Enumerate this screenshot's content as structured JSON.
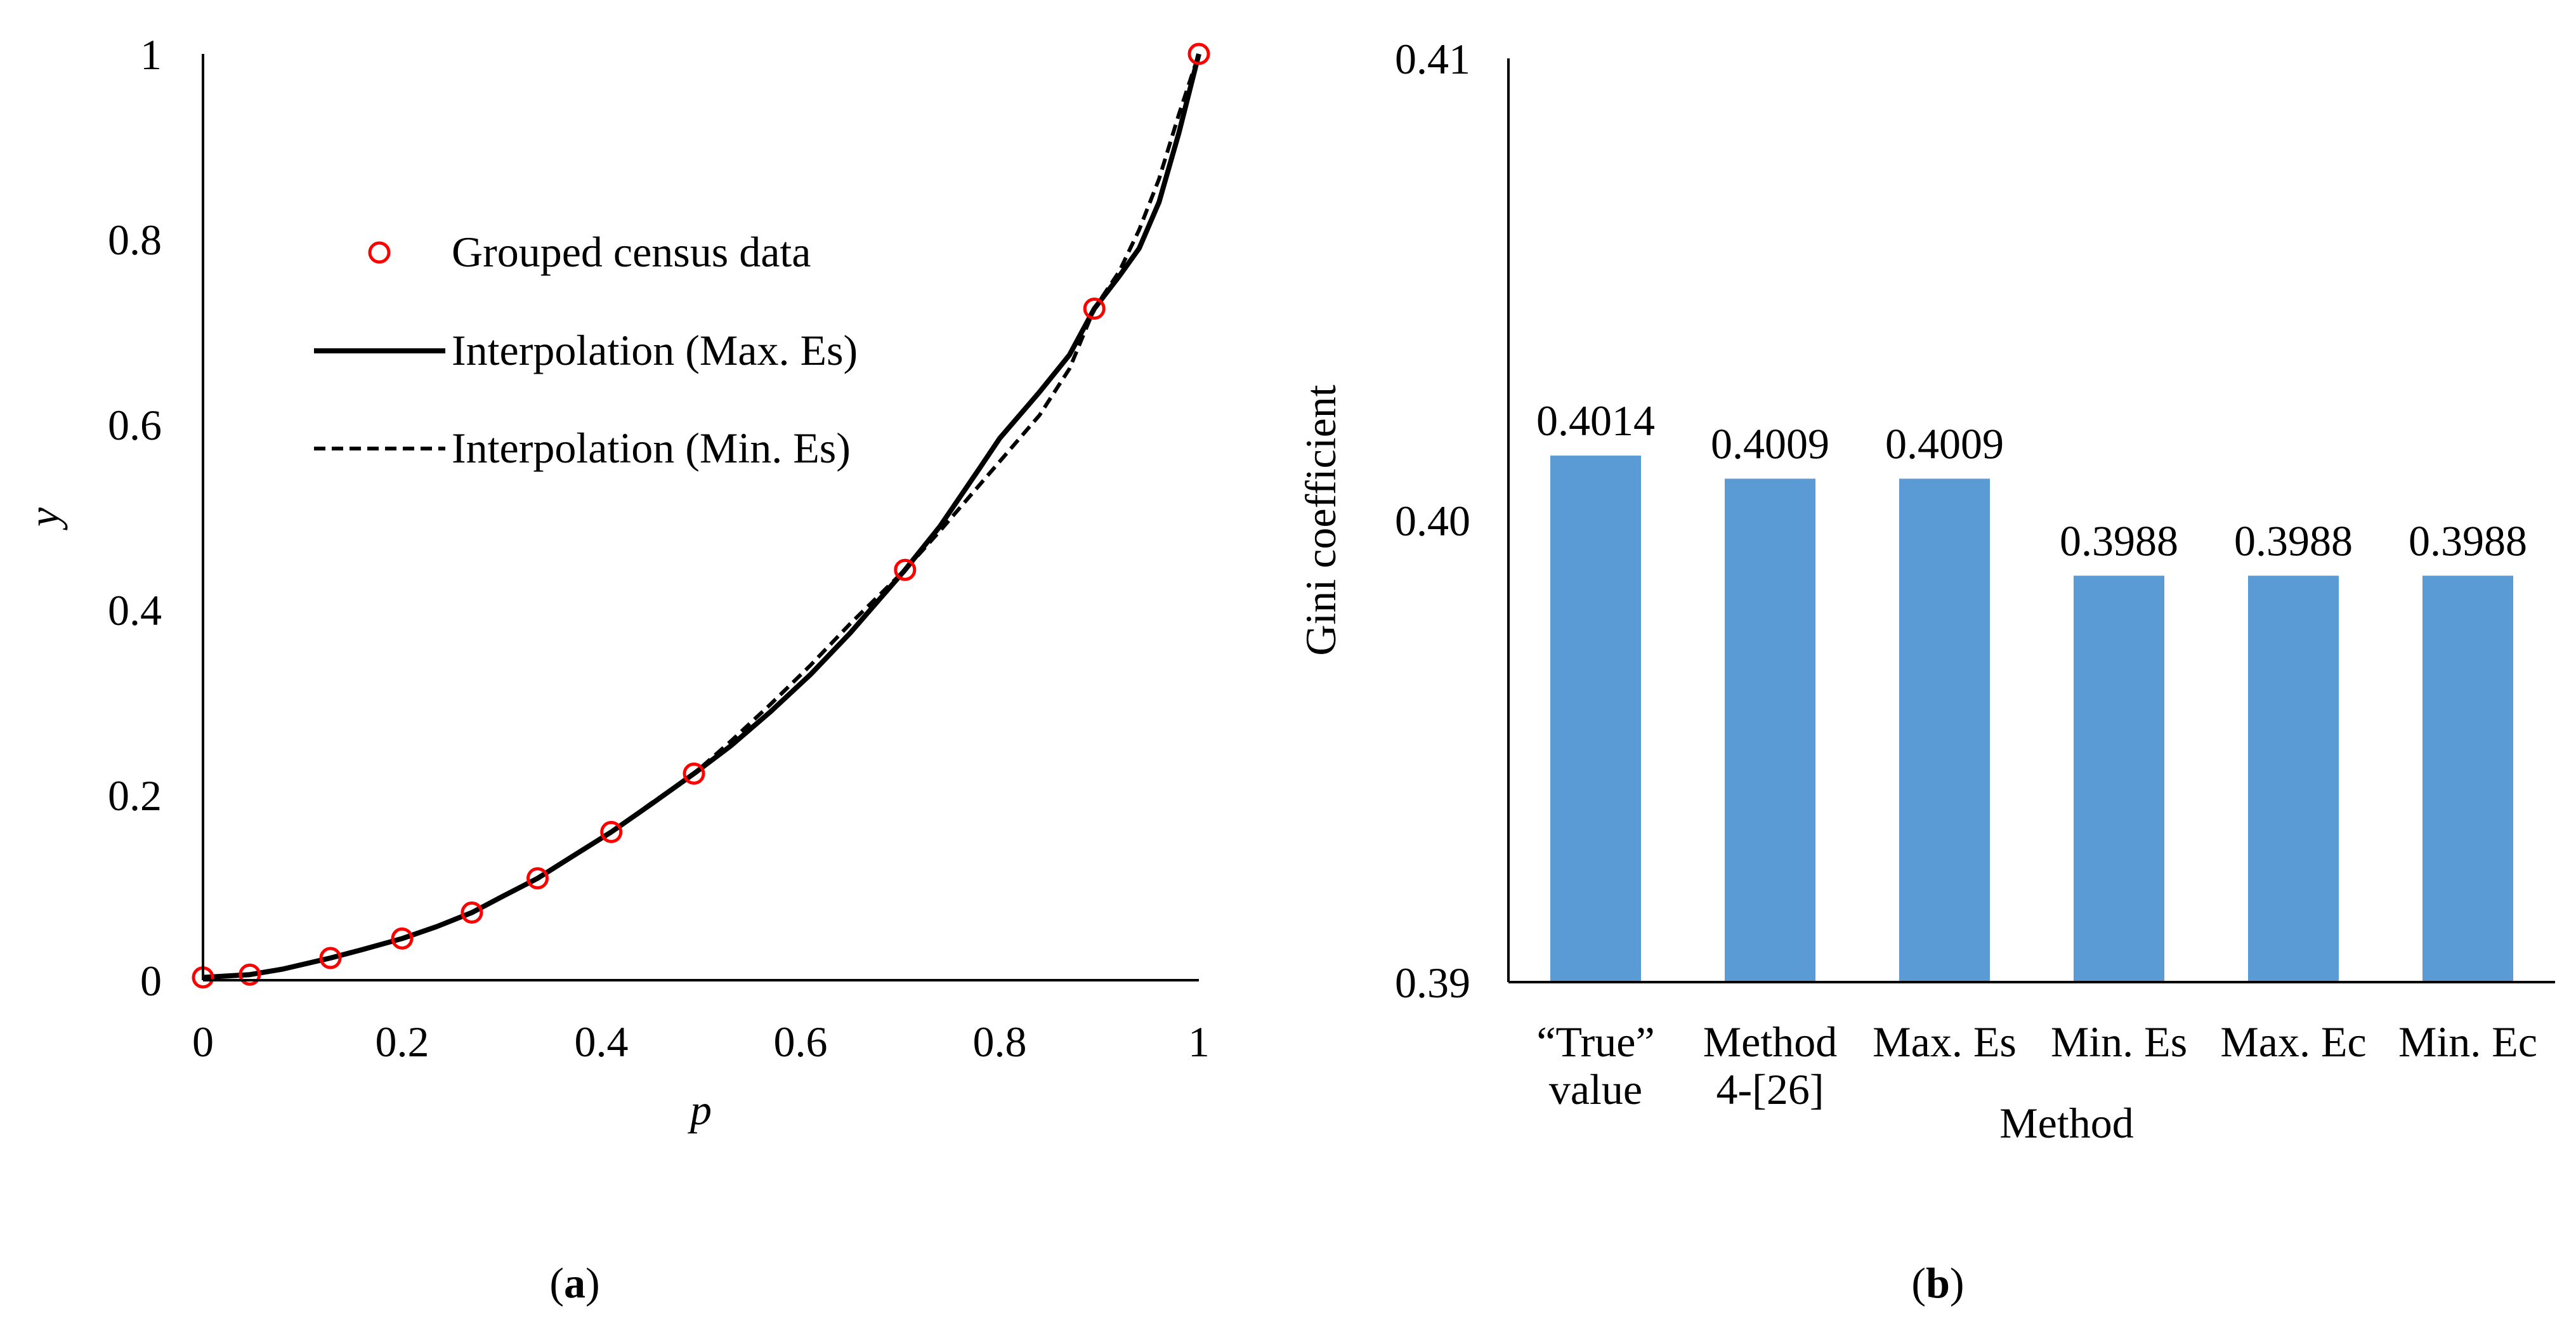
{
  "chart_data": [
    {
      "type": "line",
      "panel_label": {
        "open": "(",
        "letter": "a",
        "close": ")"
      },
      "xlabel": "p",
      "ylabel": "y",
      "xlim": [
        0,
        1
      ],
      "ylim": [
        0,
        1
      ],
      "x_ticks": [
        "0",
        "0.2",
        "0.4",
        "0.6",
        "0.8",
        "1"
      ],
      "y_ticks": [
        "0",
        "0.2",
        "0.4",
        "0.6",
        "0.8",
        "1"
      ],
      "grid": false,
      "legend_position": "upper-left",
      "series": [
        {
          "name": "Grouped census data",
          "style": "markers",
          "color": "#ff0000",
          "x": [
            0,
            0.047,
            0.128,
            0.2,
            0.27,
            0.336,
            0.41,
            0.493,
            0.705,
            0.895,
            1.0
          ],
          "y": [
            0.003,
            0.006,
            0.024,
            0.045,
            0.073,
            0.11,
            0.16,
            0.223,
            0.443,
            0.725,
            1.0
          ]
        },
        {
          "name": "Interpolation (Max. Es)",
          "style": "solid",
          "color": "#000000",
          "x": [
            0,
            0.047,
            0.08,
            0.128,
            0.16,
            0.2,
            0.235,
            0.27,
            0.3,
            0.336,
            0.37,
            0.41,
            0.45,
            0.493,
            0.53,
            0.57,
            0.61,
            0.65,
            0.705,
            0.74,
            0.78,
            0.8,
            0.84,
            0.87,
            0.895,
            0.92,
            0.94,
            0.96,
            0.98,
            1.0
          ],
          "y": [
            0.003,
            0.006,
            0.012,
            0.024,
            0.033,
            0.045,
            0.058,
            0.073,
            0.09,
            0.11,
            0.133,
            0.16,
            0.19,
            0.223,
            0.253,
            0.29,
            0.33,
            0.375,
            0.443,
            0.49,
            0.553,
            0.585,
            0.635,
            0.675,
            0.725,
            0.76,
            0.79,
            0.84,
            0.915,
            1.0
          ]
        },
        {
          "name": "Interpolation (Min. Es)",
          "style": "dashed",
          "color": "#000000",
          "x": [
            0,
            0.047,
            0.08,
            0.128,
            0.16,
            0.2,
            0.235,
            0.27,
            0.3,
            0.336,
            0.37,
            0.41,
            0.45,
            0.493,
            0.53,
            0.57,
            0.61,
            0.65,
            0.705,
            0.74,
            0.78,
            0.8,
            0.84,
            0.87,
            0.895,
            0.92,
            0.94,
            0.96,
            0.98,
            1.0
          ],
          "y": [
            0.003,
            0.006,
            0.012,
            0.024,
            0.033,
            0.045,
            0.058,
            0.073,
            0.09,
            0.11,
            0.133,
            0.16,
            0.191,
            0.223,
            0.258,
            0.298,
            0.34,
            0.385,
            0.443,
            0.485,
            0.535,
            0.56,
            0.61,
            0.66,
            0.725,
            0.765,
            0.81,
            0.865,
            0.935,
            1.0
          ]
        }
      ]
    },
    {
      "type": "bar",
      "panel_label": {
        "open": "(",
        "letter": "b",
        "close": ")"
      },
      "xlabel": "Method",
      "ylabel": "Gini coefficient",
      "ylim": [
        0.39,
        0.41
      ],
      "y_ticks": [
        "0.39",
        "0.40",
        "0.41"
      ],
      "grid": false,
      "bar_color": "#5b9bd5",
      "categories": [
        [
          "“True”",
          "value"
        ],
        [
          "Method",
          "4-[26]"
        ],
        [
          "Max. Es"
        ],
        [
          "Min. Es"
        ],
        [
          "Max. Ec"
        ],
        [
          "Min. Ec"
        ]
      ],
      "values": [
        0.4014,
        0.4009,
        0.4009,
        0.3988,
        0.3988,
        0.3988
      ],
      "value_labels": [
        "0.4014",
        "0.4009",
        "0.4009",
        "0.3988",
        "0.3988",
        "0.3988"
      ]
    }
  ]
}
